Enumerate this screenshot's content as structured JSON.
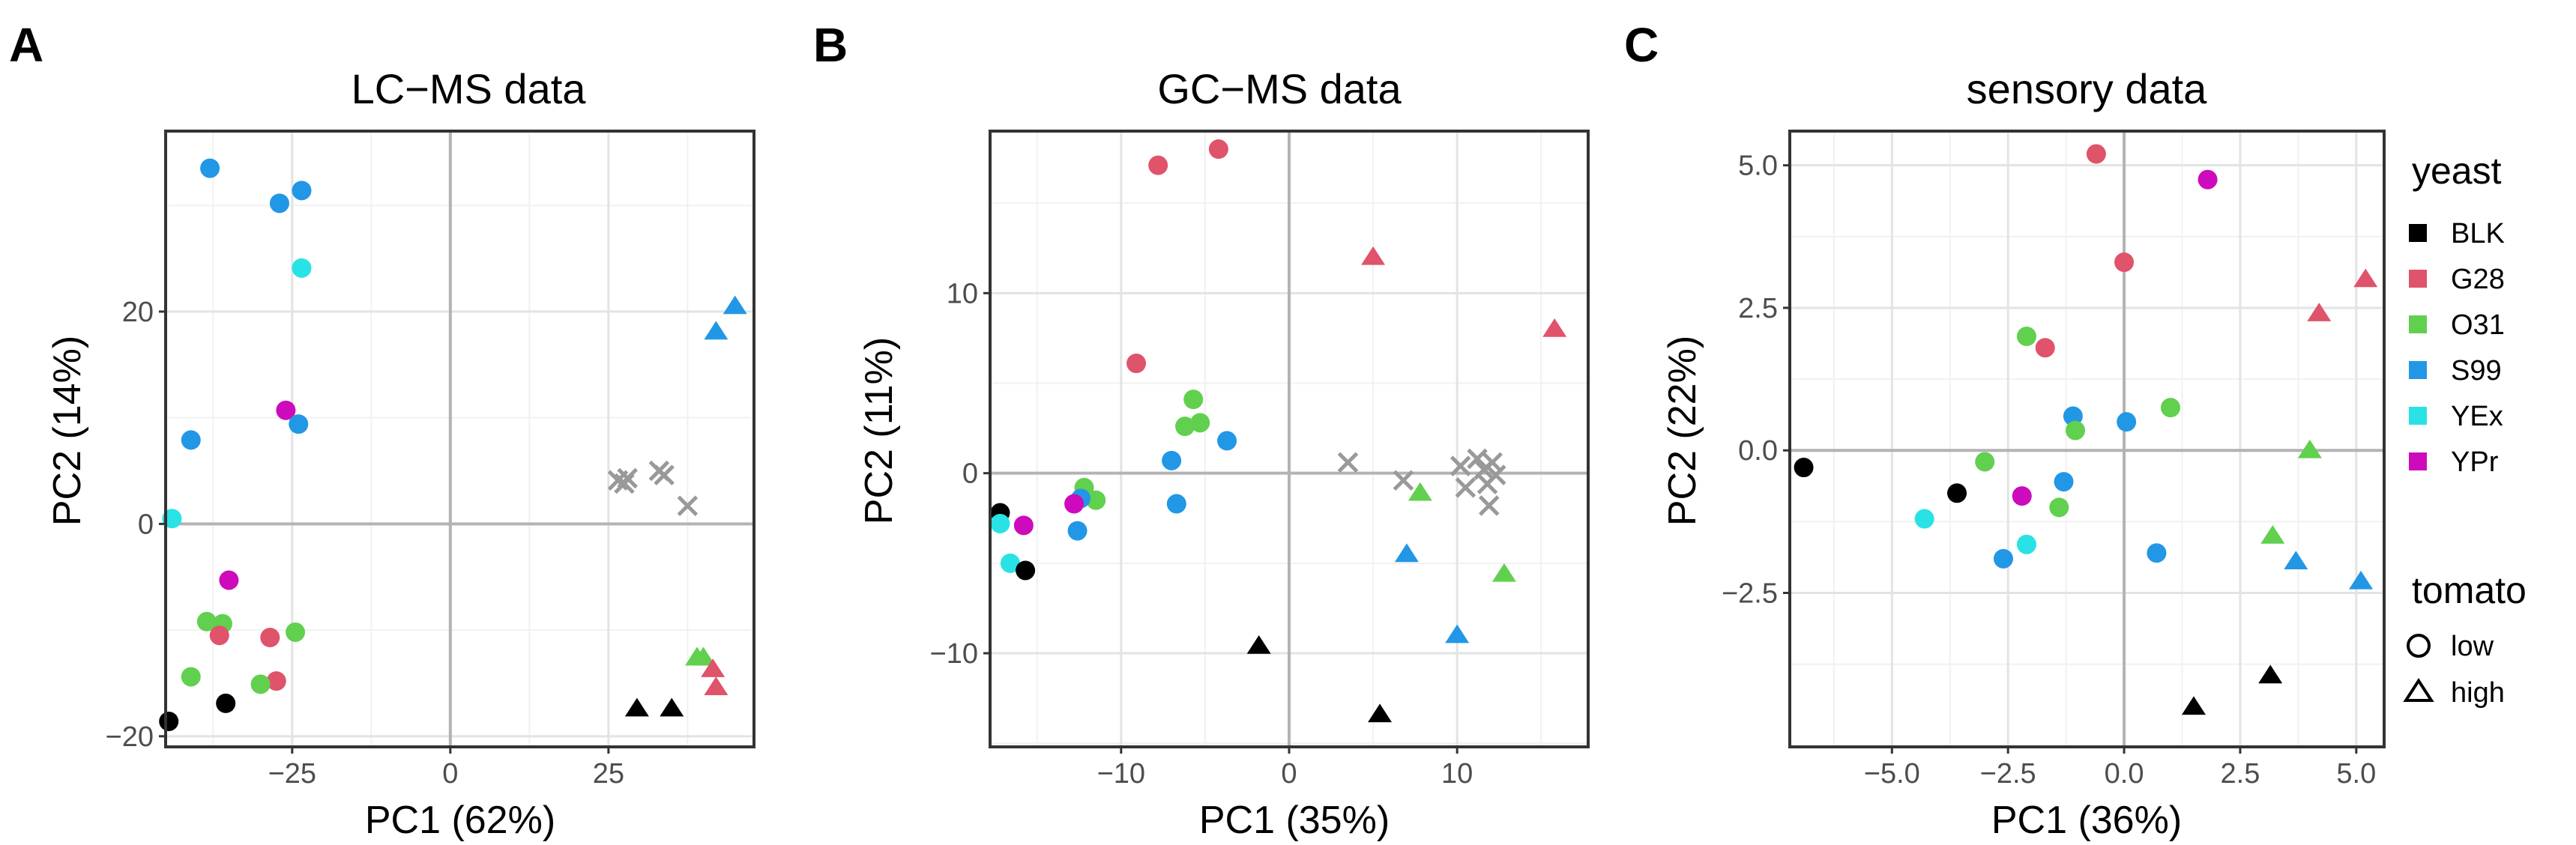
{
  "colors": {
    "BLK": "#000000",
    "G28": "#DF536B",
    "O31": "#61D04F",
    "S99": "#2297E6",
    "YEx": "#28E2E5",
    "YPr": "#CD0BBC",
    "excluded": "#999999"
  },
  "legend": {
    "yeast_title": "yeast",
    "yeast_items": [
      "BLK",
      "G28",
      "O31",
      "S99",
      "YEx",
      "YPr"
    ],
    "tomato_title": "tomato",
    "tomato_items": [
      {
        "label": "low",
        "shape": "circle"
      },
      {
        "label": "high",
        "shape": "triangle"
      }
    ]
  },
  "chart_data": [
    {
      "panel": "A",
      "type": "scatter",
      "title": "LC−MS data",
      "xlabel": "PC1 (62%)",
      "ylabel": "PC2 (14%)",
      "xlim": [
        -45,
        48
      ],
      "ylim": [
        -21,
        37
      ],
      "xticks": [
        -25,
        0,
        25
      ],
      "xtick_labels": [
        "−25",
        "0",
        "25"
      ],
      "yticks": [
        -20,
        0,
        20
      ],
      "ytick_labels": [
        "−20",
        "0",
        "20"
      ],
      "points": [
        {
          "x": -38,
          "y": 33.5,
          "yeast": "S99",
          "tomato": "low"
        },
        {
          "x": -27,
          "y": 30.2,
          "yeast": "S99",
          "tomato": "low"
        },
        {
          "x": -23.5,
          "y": 31.4,
          "yeast": "S99",
          "tomato": "low"
        },
        {
          "x": -23.5,
          "y": 24.1,
          "yeast": "YEx",
          "tomato": "low"
        },
        {
          "x": -26,
          "y": 10.7,
          "yeast": "YPr",
          "tomato": "low"
        },
        {
          "x": -24,
          "y": 9.4,
          "yeast": "S99",
          "tomato": "low"
        },
        {
          "x": -41,
          "y": 7.9,
          "yeast": "S99",
          "tomato": "low"
        },
        {
          "x": -44,
          "y": 0.5,
          "yeast": "YEx",
          "tomato": "low"
        },
        {
          "x": -35,
          "y": -5.3,
          "yeast": "YPr",
          "tomato": "low"
        },
        {
          "x": -38.5,
          "y": -9.2,
          "yeast": "O31",
          "tomato": "low"
        },
        {
          "x": -36,
          "y": -9.4,
          "yeast": "O31",
          "tomato": "low"
        },
        {
          "x": -36.5,
          "y": -10.5,
          "yeast": "G28",
          "tomato": "low"
        },
        {
          "x": -28.5,
          "y": -10.7,
          "yeast": "G28",
          "tomato": "low"
        },
        {
          "x": -24.5,
          "y": -10.2,
          "yeast": "O31",
          "tomato": "low"
        },
        {
          "x": -41,
          "y": -14.4,
          "yeast": "O31",
          "tomato": "low"
        },
        {
          "x": -27.5,
          "y": -14.8,
          "yeast": "G28",
          "tomato": "low"
        },
        {
          "x": -30,
          "y": -15.1,
          "yeast": "O31",
          "tomato": "low"
        },
        {
          "x": -35.5,
          "y": -16.9,
          "yeast": "BLK",
          "tomato": "low"
        },
        {
          "x": -44.5,
          "y": -18.6,
          "yeast": "BLK",
          "tomato": "low"
        },
        {
          "x": 45,
          "y": 20.5,
          "yeast": "S99",
          "tomato": "high"
        },
        {
          "x": 42,
          "y": 18.1,
          "yeast": "S99",
          "tomato": "high"
        },
        {
          "x": 39,
          "y": -12.6,
          "yeast": "O31",
          "tomato": "high"
        },
        {
          "x": 40,
          "y": -12.6,
          "yeast": "O31",
          "tomato": "high"
        },
        {
          "x": 41.5,
          "y": -13.7,
          "yeast": "G28",
          "tomato": "high"
        },
        {
          "x": 42,
          "y": -15.4,
          "yeast": "G28",
          "tomato": "high"
        },
        {
          "x": 29.5,
          "y": -17.4,
          "yeast": "BLK",
          "tomato": "high"
        },
        {
          "x": 35,
          "y": -17.4,
          "yeast": "BLK",
          "tomato": "high"
        }
      ],
      "excluded_points": [
        {
          "x": 26.5,
          "y": 4.1
        },
        {
          "x": 27.5,
          "y": 3.8
        },
        {
          "x": 28,
          "y": 4.3
        },
        {
          "x": 33,
          "y": 5.0
        },
        {
          "x": 33.8,
          "y": 4.6
        },
        {
          "x": 37.5,
          "y": 1.7
        }
      ]
    },
    {
      "panel": "B",
      "type": "scatter",
      "title": "GC−MS data",
      "xlabel": "PC1 (35%)",
      "ylabel": "PC2 (11%)",
      "xlim": [
        -17.8,
        17.8
      ],
      "ylim": [
        -15.2,
        19
      ],
      "xticks": [
        -10,
        0,
        10
      ],
      "xtick_labels": [
        "−10",
        "0",
        "10"
      ],
      "yticks": [
        -10,
        0,
        10
      ],
      "ytick_labels": [
        "−10",
        "0",
        "10"
      ],
      "points": [
        {
          "x": -7.8,
          "y": 17.1,
          "yeast": "G28",
          "tomato": "low"
        },
        {
          "x": -4.2,
          "y": 18.0,
          "yeast": "G28",
          "tomato": "low"
        },
        {
          "x": -9.1,
          "y": 6.1,
          "yeast": "G28",
          "tomato": "low"
        },
        {
          "x": -5.7,
          "y": 4.1,
          "yeast": "O31",
          "tomato": "low"
        },
        {
          "x": -6.2,
          "y": 2.6,
          "yeast": "O31",
          "tomato": "low"
        },
        {
          "x": -5.3,
          "y": 2.8,
          "yeast": "O31",
          "tomato": "low"
        },
        {
          "x": -3.7,
          "y": 1.8,
          "yeast": "S99",
          "tomato": "low"
        },
        {
          "x": -7.0,
          "y": 0.7,
          "yeast": "S99",
          "tomato": "low"
        },
        {
          "x": -6.7,
          "y": -1.7,
          "yeast": "S99",
          "tomato": "low"
        },
        {
          "x": -12.2,
          "y": -0.8,
          "yeast": "O31",
          "tomato": "low"
        },
        {
          "x": -11.5,
          "y": -1.5,
          "yeast": "O31",
          "tomato": "low"
        },
        {
          "x": -12.4,
          "y": -1.4,
          "yeast": "S99",
          "tomato": "low"
        },
        {
          "x": -12.8,
          "y": -1.7,
          "yeast": "YPr",
          "tomato": "low"
        },
        {
          "x": -12.6,
          "y": -3.2,
          "yeast": "S99",
          "tomato": "low"
        },
        {
          "x": -17.2,
          "y": -2.2,
          "yeast": "BLK",
          "tomato": "low"
        },
        {
          "x": -17.2,
          "y": -2.8,
          "yeast": "YEx",
          "tomato": "low"
        },
        {
          "x": -15.8,
          "y": -2.9,
          "yeast": "YPr",
          "tomato": "low"
        },
        {
          "x": -16.6,
          "y": -5.0,
          "yeast": "YEx",
          "tomato": "low"
        },
        {
          "x": -15.7,
          "y": -5.4,
          "yeast": "BLK",
          "tomato": "low"
        },
        {
          "x": 5.0,
          "y": 12.0,
          "yeast": "G28",
          "tomato": "high"
        },
        {
          "x": 15.8,
          "y": 8.0,
          "yeast": "G28",
          "tomato": "high"
        },
        {
          "x": 7.8,
          "y": -1.1,
          "yeast": "O31",
          "tomato": "high"
        },
        {
          "x": 7.0,
          "y": -4.5,
          "yeast": "S99",
          "tomato": "high"
        },
        {
          "x": 12.8,
          "y": -5.6,
          "yeast": "O31",
          "tomato": "high"
        },
        {
          "x": 10.0,
          "y": -9.0,
          "yeast": "S99",
          "tomato": "high"
        },
        {
          "x": -1.8,
          "y": -9.6,
          "yeast": "BLK",
          "tomato": "high"
        },
        {
          "x": 5.4,
          "y": -13.4,
          "yeast": "BLK",
          "tomato": "high"
        }
      ],
      "excluded_points": [
        {
          "x": 3.5,
          "y": 0.6
        },
        {
          "x": 6.8,
          "y": -0.4
        },
        {
          "x": 10.2,
          "y": 0.4
        },
        {
          "x": 10.5,
          "y": -0.8
        },
        {
          "x": 11.2,
          "y": 0.8
        },
        {
          "x": 11.6,
          "y": 0.2
        },
        {
          "x": 11.8,
          "y": -0.6
        },
        {
          "x": 12.1,
          "y": 0.6
        },
        {
          "x": 12.3,
          "y": -0.1
        },
        {
          "x": 11.9,
          "y": -1.8
        }
      ]
    },
    {
      "panel": "C",
      "type": "scatter",
      "title": "sensory data",
      "xlabel": "PC1 (36%)",
      "ylabel": "PC2 (22%)",
      "xlim": [
        -7.2,
        5.6
      ],
      "ylim": [
        -5.2,
        5.6
      ],
      "xticks": [
        -5.0,
        -2.5,
        0.0,
        2.5,
        5.0
      ],
      "xtick_labels": [
        "−5.0",
        "−2.5",
        "0.0",
        "2.5",
        "5.0"
      ],
      "yticks": [
        -2.5,
        0.0,
        2.5,
        5.0
      ],
      "ytick_labels": [
        "−2.5",
        "0.0",
        "2.5",
        "5.0"
      ],
      "points": [
        {
          "x": -0.6,
          "y": 5.2,
          "yeast": "G28",
          "tomato": "low"
        },
        {
          "x": 1.8,
          "y": 4.75,
          "yeast": "YPr",
          "tomato": "low"
        },
        {
          "x": 0.0,
          "y": 3.3,
          "yeast": "G28",
          "tomato": "low"
        },
        {
          "x": -2.1,
          "y": 2.0,
          "yeast": "O31",
          "tomato": "low"
        },
        {
          "x": -1.7,
          "y": 1.8,
          "yeast": "G28",
          "tomato": "low"
        },
        {
          "x": 1.0,
          "y": 0.75,
          "yeast": "O31",
          "tomato": "low"
        },
        {
          "x": -1.1,
          "y": 0.6,
          "yeast": "S99",
          "tomato": "low"
        },
        {
          "x": -1.05,
          "y": 0.35,
          "yeast": "O31",
          "tomato": "low"
        },
        {
          "x": 0.05,
          "y": 0.5,
          "yeast": "S99",
          "tomato": "low"
        },
        {
          "x": -3.0,
          "y": -0.2,
          "yeast": "O31",
          "tomato": "low"
        },
        {
          "x": -6.9,
          "y": -0.3,
          "yeast": "BLK",
          "tomato": "low"
        },
        {
          "x": -3.6,
          "y": -0.75,
          "yeast": "BLK",
          "tomato": "low"
        },
        {
          "x": -1.3,
          "y": -0.55,
          "yeast": "S99",
          "tomato": "low"
        },
        {
          "x": -2.2,
          "y": -0.8,
          "yeast": "YPr",
          "tomato": "low"
        },
        {
          "x": -1.4,
          "y": -1.0,
          "yeast": "O31",
          "tomato": "low"
        },
        {
          "x": -4.3,
          "y": -1.2,
          "yeast": "YEx",
          "tomato": "low"
        },
        {
          "x": -2.1,
          "y": -1.65,
          "yeast": "YEx",
          "tomato": "low"
        },
        {
          "x": -2.6,
          "y": -1.9,
          "yeast": "S99",
          "tomato": "low"
        },
        {
          "x": 0.7,
          "y": -1.8,
          "yeast": "S99",
          "tomato": "low"
        },
        {
          "x": 5.2,
          "y": 3.0,
          "yeast": "G28",
          "tomato": "high"
        },
        {
          "x": 4.2,
          "y": 2.4,
          "yeast": "G28",
          "tomato": "high"
        },
        {
          "x": 4.0,
          "y": 0.0,
          "yeast": "O31",
          "tomato": "high"
        },
        {
          "x": 3.2,
          "y": -1.5,
          "yeast": "O31",
          "tomato": "high"
        },
        {
          "x": 3.7,
          "y": -1.95,
          "yeast": "S99",
          "tomato": "high"
        },
        {
          "x": 5.1,
          "y": -2.3,
          "yeast": "S99",
          "tomato": "high"
        },
        {
          "x": 3.15,
          "y": -3.95,
          "yeast": "BLK",
          "tomato": "high"
        },
        {
          "x": 1.5,
          "y": -4.5,
          "yeast": "BLK",
          "tomato": "high"
        }
      ],
      "excluded_points": []
    }
  ]
}
